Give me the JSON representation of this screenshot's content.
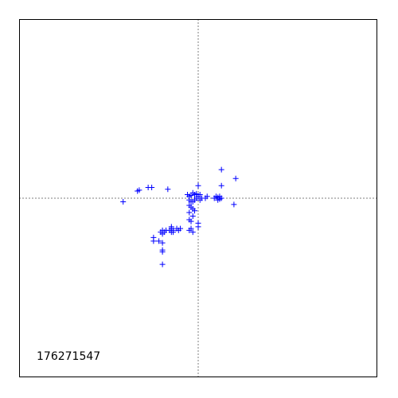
{
  "chart_data": {
    "type": "scatter",
    "title": "",
    "xlabel": "",
    "ylabel": "",
    "annotation": "176271547",
    "xlim": [
      -1,
      1
    ],
    "ylim": [
      -1,
      1
    ],
    "grid": false,
    "crosshair_at": [
      0,
      0
    ],
    "marker": "plus",
    "marker_color": "#0000ff",
    "series": [
      {
        "points": [
          [
            -0.42,
            -0.02
          ],
          [
            -0.34,
            0.04
          ],
          [
            -0.33,
            0.045
          ],
          [
            -0.28,
            0.06
          ],
          [
            -0.26,
            0.06
          ],
          [
            -0.17,
            0.05
          ],
          [
            -0.06,
            0.02
          ],
          [
            -0.05,
            0.01
          ],
          [
            -0.04,
            0.015
          ],
          [
            -0.03,
            0.03
          ],
          [
            -0.02,
            0.02
          ],
          [
            -0.01,
            0.025
          ],
          [
            0.0,
            0.01
          ],
          [
            0.01,
            0.02
          ],
          [
            0.0,
            0.07
          ],
          [
            0.05,
            0.01
          ],
          [
            -0.05,
            -0.01
          ],
          [
            -0.04,
            -0.02
          ],
          [
            -0.03,
            -0.02
          ],
          [
            -0.02,
            -0.01
          ],
          [
            -0.01,
            0.0
          ],
          [
            0.01,
            -0.01
          ],
          [
            0.02,
            0.0
          ],
          [
            0.04,
            0.0
          ],
          [
            0.09,
            0.0
          ],
          [
            0.1,
            0.01
          ],
          [
            0.11,
            0.005
          ],
          [
            0.12,
            -0.005
          ],
          [
            0.13,
            0.0
          ],
          [
            0.12,
            0.01
          ],
          [
            0.11,
            -0.01
          ],
          [
            0.13,
            0.07
          ],
          [
            0.13,
            0.16
          ],
          [
            0.21,
            0.11
          ],
          [
            0.2,
            -0.035
          ],
          [
            -0.05,
            -0.04
          ],
          [
            -0.04,
            -0.05
          ],
          [
            -0.03,
            -0.06
          ],
          [
            -0.02,
            -0.07
          ],
          [
            -0.05,
            -0.08
          ],
          [
            -0.03,
            -0.1
          ],
          [
            -0.05,
            -0.12
          ],
          [
            -0.04,
            -0.13
          ],
          [
            0.0,
            -0.14
          ],
          [
            0.0,
            -0.16
          ],
          [
            -0.04,
            -0.17
          ],
          [
            -0.05,
            -0.18
          ],
          [
            -0.03,
            -0.19
          ],
          [
            -0.1,
            -0.17
          ],
          [
            -0.11,
            -0.18
          ],
          [
            -0.12,
            -0.17
          ],
          [
            -0.14,
            -0.18
          ],
          [
            -0.15,
            -0.17
          ],
          [
            -0.15,
            -0.16
          ],
          [
            -0.15,
            -0.19
          ],
          [
            -0.14,
            -0.19
          ],
          [
            -0.16,
            -0.18
          ],
          [
            -0.18,
            -0.18
          ],
          [
            -0.19,
            -0.19
          ],
          [
            -0.2,
            -0.18
          ],
          [
            -0.21,
            -0.19
          ],
          [
            -0.2,
            -0.2
          ],
          [
            -0.25,
            -0.22
          ],
          [
            -0.25,
            -0.24
          ],
          [
            -0.22,
            -0.24
          ],
          [
            -0.2,
            -0.25
          ],
          [
            -0.2,
            -0.29
          ],
          [
            -0.2,
            -0.3
          ],
          [
            -0.2,
            -0.37
          ]
        ]
      }
    ]
  }
}
